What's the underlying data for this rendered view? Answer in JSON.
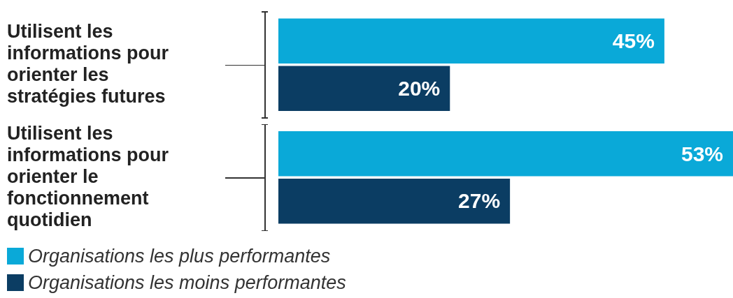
{
  "chart_data": {
    "type": "bar",
    "orientation": "horizontal",
    "categories": [
      "Utilisent les informations pour orienter les stratégies futures",
      "Utilisent les informations pour orienter le fonctionnement quotidien"
    ],
    "series": [
      {
        "name": "Organisations les plus performantes",
        "color": "#0aa9d8",
        "values": [
          45,
          53
        ],
        "value_labels": [
          "45%",
          "53%"
        ]
      },
      {
        "name": "Organisations les moins performantes",
        "color": "#0b3d63",
        "values": [
          20,
          27
        ],
        "value_labels": [
          "20%",
          "27%"
        ]
      }
    ],
    "legend": "bottom left",
    "grid": false
  }
}
